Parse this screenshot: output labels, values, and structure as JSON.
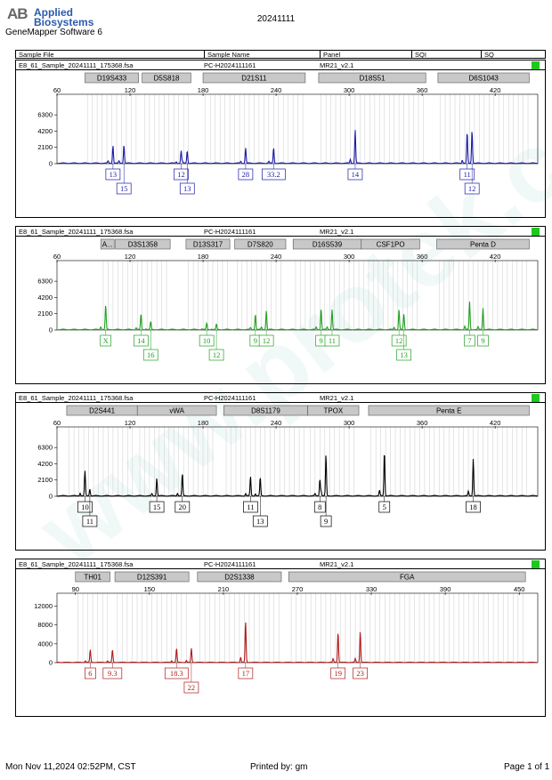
{
  "header": {
    "logo_mark": "AB",
    "brand_line1": "Applied",
    "brand_line2": "Biosystems",
    "software": "GeneMapper Software 6",
    "date": "20241111"
  },
  "table_header": {
    "col_sample_file": "Sample File",
    "col_sample_name": "Sample Name",
    "col_panel": "Panel",
    "col_sqi": "SQI",
    "col_sq": "SQ"
  },
  "watermark": "www.protek.com.cn",
  "footer": {
    "datetime": "Mon Nov 11,2024 02:52PM, CST",
    "printed_by": "Printed by: gm",
    "page": "Page 1 of 1"
  },
  "chart_data": [
    {
      "type": "line",
      "sample_file": "E8_61_Sample_20241111_175368.fsa",
      "sample_name": "PC-H2024111161",
      "panel": "MR21_v2.1",
      "color": "#1a1aa8",
      "xlim": [
        60,
        455
      ],
      "xticks": [
        60,
        120,
        180,
        240,
        300,
        360,
        420
      ],
      "ylim": [
        0,
        8500
      ],
      "yticks": [
        0,
        2100,
        4200,
        6300
      ],
      "loci": [
        {
          "name": "D19S433",
          "start": 83,
          "end": 127
        },
        {
          "name": "D5S818",
          "start": 130,
          "end": 170
        },
        {
          "name": "D21S11",
          "start": 180,
          "end": 264
        },
        {
          "name": "D18S51",
          "start": 275,
          "end": 363
        },
        {
          "name": "D6S1043",
          "start": 373,
          "end": 448
        }
      ],
      "peaks": [
        {
          "x": 106,
          "height": 2300,
          "label": "13",
          "row": 0
        },
        {
          "x": 115,
          "height": 2400,
          "label": "15",
          "row": 1
        },
        {
          "x": 162,
          "height": 1600,
          "label": "12",
          "row": 0
        },
        {
          "x": 167,
          "height": 1600,
          "label": "13",
          "row": 1
        },
        {
          "x": 215,
          "height": 2000,
          "label": "28",
          "row": 0
        },
        {
          "x": 238,
          "height": 2000,
          "label": "33.2",
          "row": 0
        },
        {
          "x": 305,
          "height": 4300,
          "label": "14",
          "row": 0
        },
        {
          "x": 397,
          "height": 3500,
          "label": "11",
          "row": 0
        },
        {
          "x": 401,
          "height": 4300,
          "label": "12",
          "row": 1
        }
      ]
    },
    {
      "type": "line",
      "sample_file": "E8_61_Sample_20241111_175368.fsa",
      "sample_name": "PC-H2024111161",
      "panel": "MR21_v2.1",
      "color": "#22a022",
      "xlim": [
        60,
        455
      ],
      "xticks": [
        60,
        120,
        180,
        240,
        300,
        360,
        420
      ],
      "ylim": [
        0,
        8500
      ],
      "yticks": [
        0,
        2100,
        4200,
        6300
      ],
      "loci": [
        {
          "name": "A...",
          "start": 96,
          "end": 107
        },
        {
          "name": "D3S1358",
          "start": 108,
          "end": 153
        },
        {
          "name": "D13S317",
          "start": 166,
          "end": 202
        },
        {
          "name": "D7S820",
          "start": 206,
          "end": 248
        },
        {
          "name": "D16S539",
          "start": 254,
          "end": 310
        },
        {
          "name": "CSF1PO",
          "start": 310,
          "end": 358
        },
        {
          "name": "Penta D",
          "start": 372,
          "end": 448
        }
      ],
      "peaks": [
        {
          "x": 100,
          "height": 3200,
          "label": "X",
          "row": 0
        },
        {
          "x": 129,
          "height": 2000,
          "label": "14",
          "row": 0
        },
        {
          "x": 137,
          "height": 1000,
          "label": "16",
          "row": 1
        },
        {
          "x": 183,
          "height": 800,
          "label": "10",
          "row": 0
        },
        {
          "x": 191,
          "height": 700,
          "label": "12",
          "row": 1
        },
        {
          "x": 223,
          "height": 2000,
          "label": "9",
          "row": 0
        },
        {
          "x": 232,
          "height": 2500,
          "label": "12",
          "row": 0
        },
        {
          "x": 277,
          "height": 2700,
          "label": "9",
          "row": 0
        },
        {
          "x": 286,
          "height": 2600,
          "label": "11",
          "row": 0
        },
        {
          "x": 341,
          "height": 2400,
          "label": "12",
          "row": 0
        },
        {
          "x": 345,
          "height": 2000,
          "label": "13",
          "row": 1
        },
        {
          "x": 399,
          "height": 3600,
          "label": "7",
          "row": 0
        },
        {
          "x": 410,
          "height": 2800,
          "label": "9",
          "row": 0
        }
      ]
    },
    {
      "type": "line",
      "sample_file": "E8_61_Sample_20241111_175368.fsa",
      "sample_name": "PC-H2024111161",
      "panel": "MR21_v2.1",
      "color": "#000000",
      "xlim": [
        60,
        455
      ],
      "xticks": [
        60,
        120,
        180,
        240,
        300,
        360,
        420
      ],
      "ylim": [
        0,
        8500
      ],
      "yticks": [
        0,
        2100,
        4200,
        6300
      ],
      "loci": [
        {
          "name": "D2S441",
          "start": 68,
          "end": 126
        },
        {
          "name": "vWA",
          "start": 126,
          "end": 191
        },
        {
          "name": "D8S1179",
          "start": 197,
          "end": 266
        },
        {
          "name": "TPOX",
          "start": 266,
          "end": 308
        },
        {
          "name": "Penta E",
          "start": 316,
          "end": 448
        }
      ],
      "peaks": [
        {
          "x": 83,
          "height": 3100,
          "label": "10",
          "row": 0
        },
        {
          "x": 87,
          "height": 900,
          "label": "11",
          "row": 1
        },
        {
          "x": 142,
          "height": 2300,
          "label": "15",
          "row": 0
        },
        {
          "x": 163,
          "height": 2900,
          "label": "20",
          "row": 0
        },
        {
          "x": 219,
          "height": 2500,
          "label": "11",
          "row": 0
        },
        {
          "x": 227,
          "height": 2400,
          "label": "13",
          "row": 1
        },
        {
          "x": 276,
          "height": 2200,
          "label": "8",
          "row": 0
        },
        {
          "x": 281,
          "height": 5300,
          "label": "9",
          "row": 1
        },
        {
          "x": 329,
          "height": 5800,
          "label": "5",
          "row": 0
        },
        {
          "x": 402,
          "height": 4800,
          "label": "18",
          "row": 0
        }
      ]
    },
    {
      "type": "line",
      "sample_file": "E8_61_Sample_20241111_175368.fsa",
      "sample_name": "PC-H2024111161",
      "panel": "MR21_v2.1",
      "color": "#b01a1a",
      "xlim": [
        75,
        465
      ],
      "xticks": [
        90,
        150,
        210,
        270,
        330,
        390,
        450
      ],
      "ylim": [
        0,
        14000
      ],
      "yticks": [
        0,
        4000,
        8000,
        12000
      ],
      "loci": [
        {
          "name": "TH01",
          "start": 90,
          "end": 118
        },
        {
          "name": "D12S391",
          "start": 122,
          "end": 182
        },
        {
          "name": "D2S1338",
          "start": 189,
          "end": 257
        },
        {
          "name": "FGA",
          "start": 263,
          "end": 455
        }
      ],
      "peaks": [
        {
          "x": 102,
          "height": 2700,
          "label": "6",
          "row": 0
        },
        {
          "x": 120,
          "height": 2700,
          "label": "9.3",
          "row": 0
        },
        {
          "x": 172,
          "height": 3000,
          "label": "18.3",
          "row": 0
        },
        {
          "x": 184,
          "height": 3000,
          "label": "22",
          "row": 1
        },
        {
          "x": 228,
          "height": 8800,
          "label": "17",
          "row": 0
        },
        {
          "x": 303,
          "height": 6500,
          "label": "19",
          "row": 0
        },
        {
          "x": 321,
          "height": 6600,
          "label": "23",
          "row": 0
        }
      ]
    }
  ]
}
